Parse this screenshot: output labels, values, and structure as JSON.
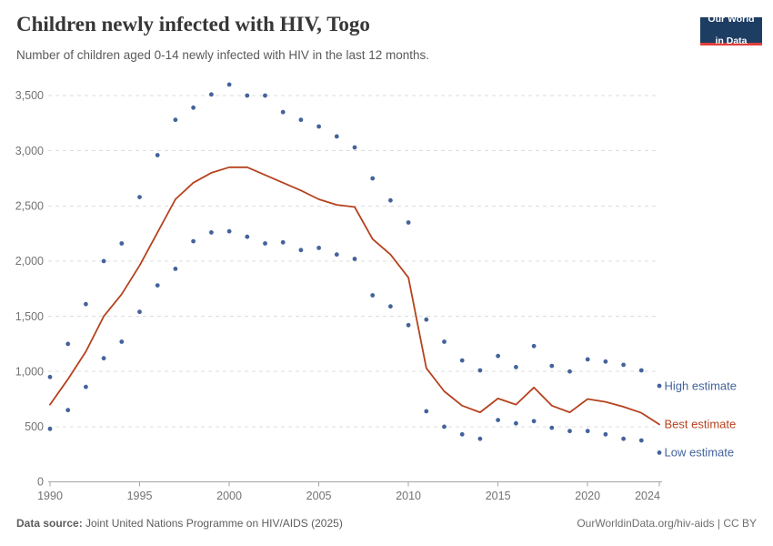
{
  "header": {
    "title": "Children newly infected with HIV, Togo",
    "subtitle": "Number of children aged 0-14 newly infected with HIV in the last 12 months.",
    "logo": {
      "line1": "Our World",
      "line2": "in Data"
    }
  },
  "footer": {
    "source_label": "Data source:",
    "source_text": " Joint United Nations Programme on HIV/AIDS (2025)",
    "url_text": "OurWorldinData.org/hiv-aids",
    "separator": " | ",
    "license_text": "CC BY"
  },
  "colors": {
    "series_blue": "#44639B",
    "series_red": "#B5421F",
    "grid": "#DCDCDC",
    "axis": "#A5A5A5",
    "tick_label": "#737373",
    "title": "#373737",
    "subtitle": "#5A5A5A",
    "logo_bg": "#1D3D63",
    "logo_bar": "#E0403A"
  },
  "chart_data": {
    "type": "line",
    "title": "Children newly infected with HIV, Togo",
    "subtitle": "Number of children aged 0-14 newly infected with HIV in the last 12 months.",
    "x": [
      1990,
      1991,
      1992,
      1993,
      1994,
      1995,
      1996,
      1997,
      1998,
      1999,
      2000,
      2001,
      2002,
      2003,
      2004,
      2005,
      2006,
      2007,
      2008,
      2009,
      2010,
      2011,
      2012,
      2013,
      2014,
      2015,
      2016,
      2017,
      2018,
      2019,
      2020,
      2021,
      2022,
      2023,
      2024
    ],
    "series": [
      {
        "name": "High estimate",
        "style": "points",
        "color": "#44639B",
        "values": [
          950,
          1250,
          1610,
          2000,
          2160,
          2580,
          2960,
          3280,
          3390,
          3510,
          3600,
          3500,
          3500,
          3350,
          3280,
          3220,
          3130,
          3030,
          2750,
          2550,
          2350,
          1470,
          1270,
          1100,
          1010,
          1140,
          1040,
          1230,
          1050,
          1000,
          1110,
          1090,
          1060,
          1010,
          870
        ]
      },
      {
        "name": "Best estimate",
        "style": "line",
        "color": "#B5421F",
        "values": [
          700,
          930,
          1180,
          1500,
          1700,
          1960,
          2260,
          2560,
          2710,
          2800,
          2850,
          2850,
          2780,
          2710,
          2640,
          2560,
          2510,
          2490,
          2200,
          2060,
          1850,
          1030,
          820,
          690,
          630,
          755,
          700,
          855,
          690,
          630,
          750,
          725,
          680,
          625,
          520
        ]
      },
      {
        "name": "Low estimate",
        "style": "points",
        "color": "#44639B",
        "values": [
          480,
          650,
          860,
          1120,
          1270,
          1540,
          1780,
          1930,
          2180,
          2260,
          2270,
          2220,
          2160,
          2170,
          2100,
          2120,
          2060,
          2020,
          1690,
          1590,
          1420,
          640,
          500,
          430,
          390,
          560,
          530,
          550,
          490,
          460,
          460,
          430,
          390,
          375,
          265
        ]
      }
    ],
    "xticks": [
      1990,
      1995,
      2000,
      2005,
      2010,
      2015,
      2020,
      2024
    ],
    "yticks": [
      0,
      500,
      1000,
      1500,
      2000,
      2500,
      3000,
      3500
    ],
    "ylim": [
      0,
      3500
    ],
    "grid": "horizontal-dashed",
    "legend_position": "end-of-line-labels"
  }
}
